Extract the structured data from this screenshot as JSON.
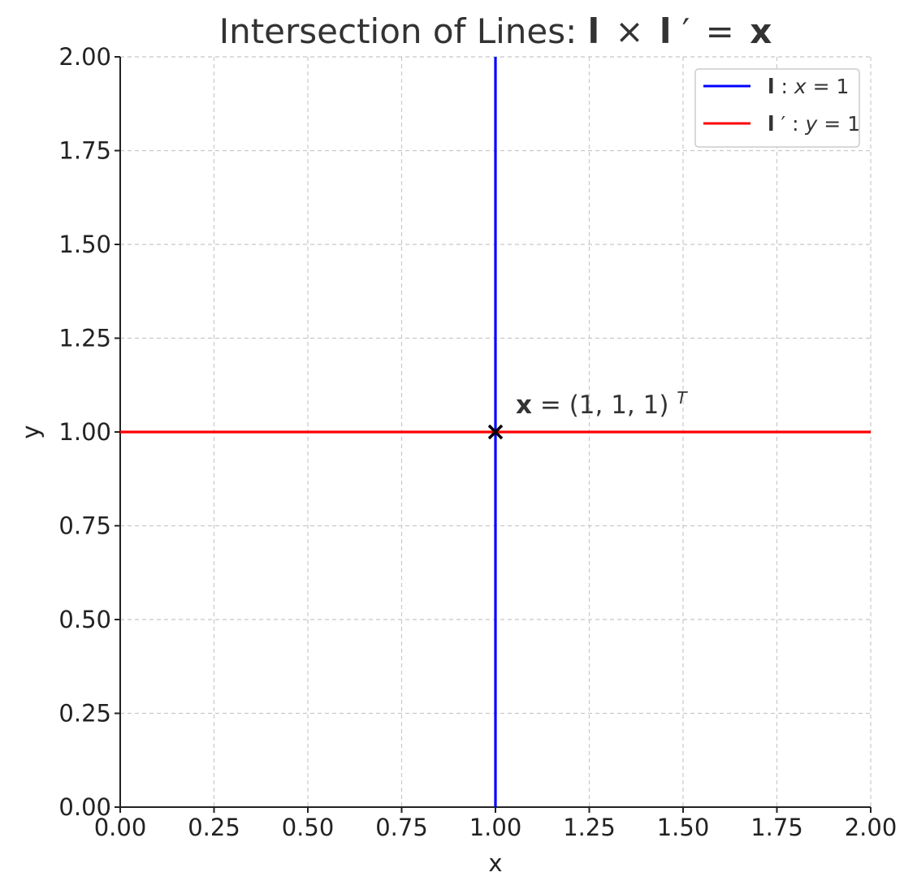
{
  "chart_data": {
    "type": "line",
    "title": {
      "prefix": "Intersection of Lines: ",
      "l": "l",
      "times": "×",
      "lprime": "l",
      "prime": "′",
      "equals": "=",
      "x": "x"
    },
    "xlabel": "x",
    "ylabel": "y",
    "xlim": [
      0,
      2
    ],
    "ylim": [
      0,
      2
    ],
    "xticks": [
      "0.00",
      "0.25",
      "0.50",
      "0.75",
      "1.00",
      "1.25",
      "1.50",
      "1.75",
      "2.00"
    ],
    "yticks": [
      "0.00",
      "0.25",
      "0.50",
      "0.75",
      "1.00",
      "1.25",
      "1.50",
      "1.75",
      "2.00"
    ],
    "grid": true,
    "legend_position": "top-right",
    "series": [
      {
        "name": "l : x = 1",
        "legend": {
          "sym": "l",
          "prime": "",
          "sep": " : ",
          "var": "x",
          "rest": " = 1"
        },
        "color": "#0000ff",
        "orientation": "vertical",
        "value": 1
      },
      {
        "name": "l′ : y = 1",
        "legend": {
          "sym": "l",
          "prime": "′",
          "sep": " : ",
          "var": "y",
          "rest": " = 1"
        },
        "color": "#ff0000",
        "orientation": "horizontal",
        "value": 1
      }
    ],
    "point": {
      "x": 1,
      "y": 1,
      "marker": "x",
      "color": "#000000",
      "label": {
        "sym": "x",
        "eq": " = (1, 1, 1)",
        "sup": "T"
      }
    }
  }
}
